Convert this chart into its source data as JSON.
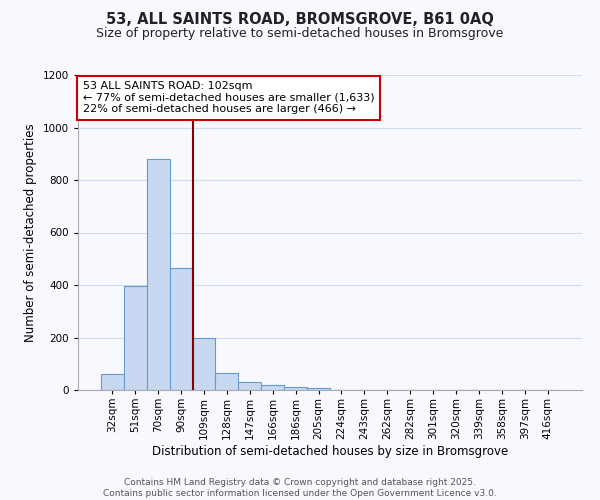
{
  "title": "53, ALL SAINTS ROAD, BROMSGROVE, B61 0AQ",
  "subtitle": "Size of property relative to semi-detached houses in Bromsgrove",
  "xlabel": "Distribution of semi-detached houses by size in Bromsgrove",
  "ylabel": "Number of semi-detached properties",
  "footer_line1": "Contains HM Land Registry data © Crown copyright and database right 2025.",
  "footer_line2": "Contains public sector information licensed under the Open Government Licence v3.0.",
  "bar_labels": [
    "32sqm",
    "51sqm",
    "70sqm",
    "90sqm",
    "109sqm",
    "128sqm",
    "147sqm",
    "166sqm",
    "186sqm",
    "205sqm",
    "224sqm",
    "243sqm",
    "262sqm",
    "282sqm",
    "301sqm",
    "320sqm",
    "339sqm",
    "358sqm",
    "397sqm",
    "416sqm"
  ],
  "bar_values": [
    60,
    395,
    880,
    465,
    200,
    65,
    30,
    18,
    10,
    7,
    0,
    0,
    0,
    0,
    0,
    0,
    0,
    0,
    0,
    0
  ],
  "bar_color": "#c8d8f0",
  "bar_edge_color": "#6699cc",
  "bar_linewidth": 0.8,
  "vline_color": "#880000",
  "vline_label_title": "53 ALL SAINTS ROAD: 102sqm",
  "vline_label_smaller": "← 77% of semi-detached houses are smaller (1,633)",
  "vline_label_larger": "22% of semi-detached houses are larger (466) →",
  "annotation_box_color": "#cc0000",
  "ylim": [
    0,
    1200
  ],
  "yticks": [
    0,
    200,
    400,
    600,
    800,
    1000,
    1200
  ],
  "bg_color": "#f8f8ff",
  "grid_color": "#d0ddf0",
  "title_fontsize": 10.5,
  "subtitle_fontsize": 9,
  "axis_label_fontsize": 8.5,
  "tick_fontsize": 7.5,
  "annotation_fontsize": 8,
  "footer_fontsize": 6.5
}
